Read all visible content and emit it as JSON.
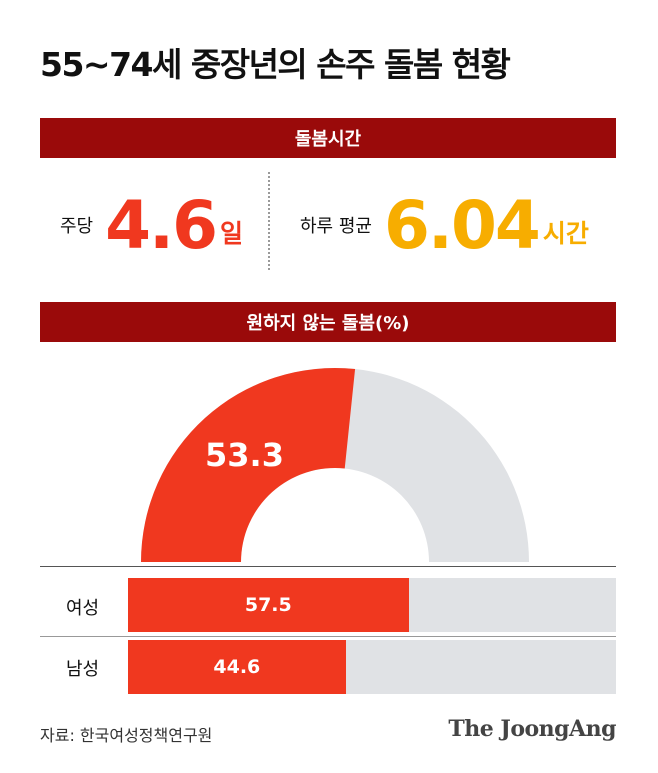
{
  "title": "55~74세 중장년의 손주 돌봄 현황",
  "care_time": {
    "header": "돌봄시간",
    "weekly": {
      "label": "주당",
      "value": "4.6",
      "unit": "일"
    },
    "daily": {
      "label": "하루 평균",
      "value": "6.04",
      "unit": "시간"
    }
  },
  "unwanted": {
    "header": "원하지 않는 돌봄(%)"
  },
  "chart_data": [
    {
      "type": "pie",
      "subtype": "semi-donut",
      "title": "원하지 않는 돌봄(%)",
      "values": [
        53.3
      ],
      "max": 100,
      "data_labels": [
        "53.3"
      ]
    },
    {
      "type": "bar",
      "orientation": "horizontal",
      "categories": [
        "여성",
        "남성"
      ],
      "values": [
        57.5,
        44.6
      ],
      "max": 100
    }
  ],
  "colors": {
    "accent_red": "#f0381f",
    "accent_yellow": "#f7ad00",
    "band": "#9a0a0a",
    "track": "#e0e2e5"
  },
  "source": "자료: 한국여성정책연구원",
  "logo": "The JoongAng"
}
